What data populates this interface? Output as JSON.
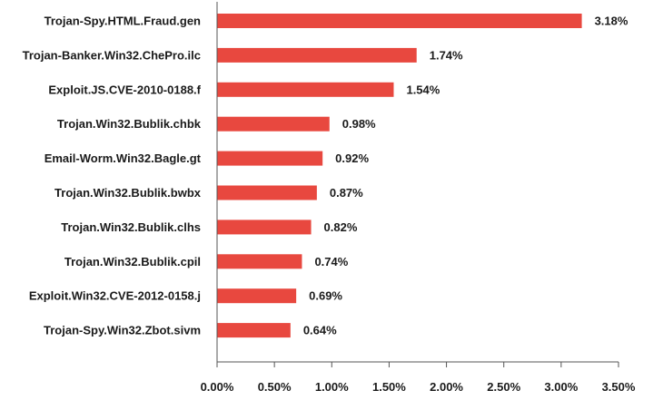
{
  "chart_data": {
    "type": "bar",
    "orientation": "horizontal",
    "categories": [
      "Trojan-Spy.HTML.Fraud.gen",
      "Trojan-Banker.Win32.ChePro.ilc",
      "Exploit.JS.CVE-2010-0188.f",
      "Trojan.Win32.Bublik.chbk",
      "Email-Worm.Win32.Bagle.gt",
      "Trojan.Win32.Bublik.bwbx",
      "Trojan.Win32.Bublik.clhs",
      "Trojan.Win32.Bublik.cpil",
      "Exploit.Win32.CVE-2012-0158.j",
      "Trojan-Spy.Win32.Zbot.sivm"
    ],
    "values": [
      3.18,
      1.74,
      1.54,
      0.98,
      0.92,
      0.87,
      0.82,
      0.74,
      0.69,
      0.64
    ],
    "value_labels": [
      "3.18%",
      "1.74%",
      "1.54%",
      "0.98%",
      "0.92%",
      "0.87%",
      "0.82%",
      "0.74%",
      "0.69%",
      "0.64%"
    ],
    "xlim": [
      0,
      3.5
    ],
    "x_ticks": [
      0,
      0.5,
      1.0,
      1.5,
      2.0,
      2.5,
      3.0,
      3.5
    ],
    "x_tick_labels": [
      "0.00%",
      "0.50%",
      "1.00%",
      "1.50%",
      "2.00%",
      "2.50%",
      "3.00%",
      "3.50%"
    ],
    "title": "",
    "xlabel": "",
    "ylabel": "",
    "grid": false,
    "bar_color": "#e8483f",
    "axis_color": "#555555"
  }
}
